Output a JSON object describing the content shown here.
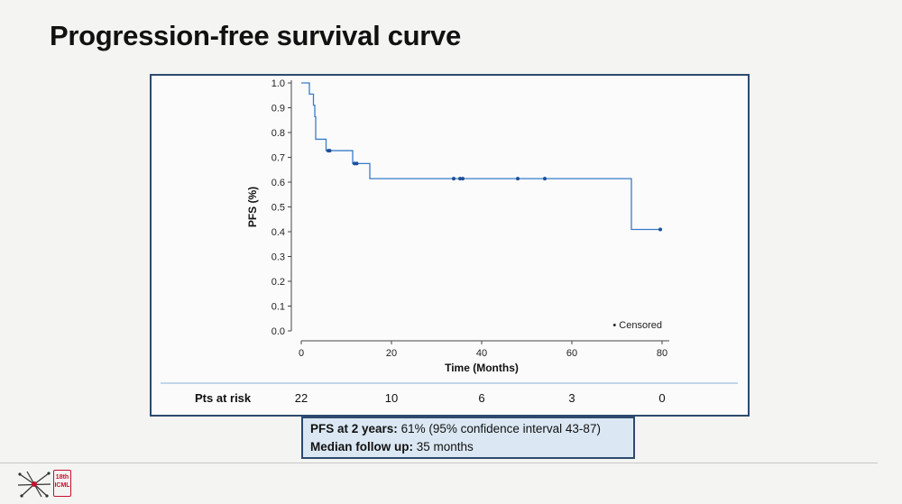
{
  "slide": {
    "title": "Progression-free survival curve"
  },
  "chart_data": {
    "type": "line",
    "subtype": "kaplan-meier-step",
    "xlabel": "Time (Months)",
    "ylabel": "PFS (%)",
    "xlim": [
      0,
      80
    ],
    "ylim": [
      0,
      1.0
    ],
    "x_ticks": [
      0,
      20,
      40,
      60,
      80
    ],
    "x_tick_labels": [
      "0",
      "20",
      "40",
      "60",
      "80"
    ],
    "y_ticks": [
      0,
      0.1,
      0.2,
      0.3,
      0.4,
      0.5,
      0.6,
      0.7,
      0.8,
      0.9,
      1.0
    ],
    "y_tick_labels": [
      "0.0",
      "0.1",
      "0.2",
      "0.3",
      "0.4",
      "0.5",
      "0.6",
      "0.7",
      "0.8",
      "0.9",
      "1.0"
    ],
    "grid": false,
    "series": [
      {
        "color": "#3a7cc8",
        "steps": [
          {
            "x": 0,
            "y": 1.0
          },
          {
            "x": 1.8,
            "y": 0.955
          },
          {
            "x": 2.7,
            "y": 0.91
          },
          {
            "x": 3.0,
            "y": 0.864
          },
          {
            "x": 3.2,
            "y": 0.773
          },
          {
            "x": 5.5,
            "y": 0.727
          },
          {
            "x": 11.4,
            "y": 0.675
          },
          {
            "x": 15.2,
            "y": 0.614
          },
          {
            "x": 73.2,
            "y": 0.409
          },
          {
            "x": 80,
            "y": 0.409
          }
        ],
        "censored": [
          {
            "x": 6.0,
            "y": 0.727
          },
          {
            "x": 6.3,
            "y": 0.727
          },
          {
            "x": 11.8,
            "y": 0.675
          },
          {
            "x": 12.3,
            "y": 0.675
          },
          {
            "x": 33.8,
            "y": 0.614
          },
          {
            "x": 35.2,
            "y": 0.614
          },
          {
            "x": 35.8,
            "y": 0.614
          },
          {
            "x": 48.0,
            "y": 0.614
          },
          {
            "x": 54.0,
            "y": 0.614
          },
          {
            "x": 79.6,
            "y": 0.409
          }
        ]
      }
    ],
    "legend": {
      "symbol": "•",
      "label": "Censored",
      "placement": "bottom-right"
    },
    "at_risk": {
      "label": "Pts at risk",
      "times": [
        0,
        20,
        40,
        60,
        80
      ],
      "counts": [
        "22",
        "10",
        "6",
        "3",
        "0"
      ]
    }
  },
  "summary": {
    "pfs_label": "PFS at 2 years:",
    "pfs_value": " 61% (95% confidence interval 43-87)",
    "followup_label": "Median follow up:",
    "followup_value": " 35 months"
  },
  "logo": {
    "text": "ICML",
    "small_text": "18th"
  }
}
